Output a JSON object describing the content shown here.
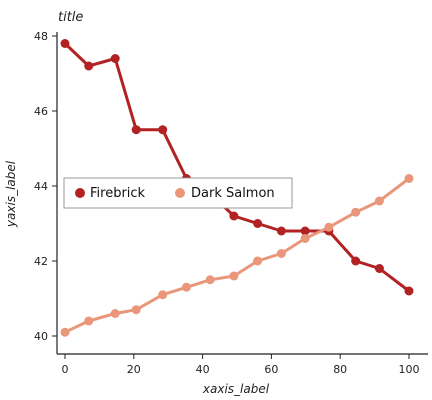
{
  "chart_data": {
    "type": "line",
    "title": "title",
    "xlabel": "xaxis_label",
    "ylabel": "yaxis_label",
    "xlim": [
      0,
      100
    ],
    "ylim": [
      40,
      48
    ],
    "xticks": [
      "0",
      "20",
      "40",
      "60",
      "80",
      "100"
    ],
    "yticks": [
      "40",
      "42",
      "44",
      "46",
      "48"
    ],
    "grid": false,
    "legend_position": "center-left",
    "series": [
      {
        "name": "Firebrick",
        "color": "#b22222",
        "x": [
          0,
          6.9,
          14.6,
          20.7,
          28.4,
          35.3,
          42.2,
          49.1,
          56.0,
          62.9,
          69.8,
          76.7,
          84.5,
          91.4,
          100
        ],
        "y": [
          47.8,
          47.2,
          47.4,
          45.5,
          45.5,
          44.2,
          43.8,
          43.2,
          43.0,
          42.8,
          42.8,
          42.8,
          42.0,
          41.8,
          41.2
        ]
      },
      {
        "name": "Dark Salmon",
        "color": "#e9967a",
        "x": [
          0,
          6.9,
          14.6,
          20.7,
          28.4,
          35.3,
          42.2,
          49.1,
          56.0,
          62.9,
          69.8,
          76.7,
          84.5,
          91.4,
          100
        ],
        "y": [
          40.1,
          40.4,
          40.6,
          40.7,
          41.1,
          41.3,
          41.5,
          41.6,
          42.0,
          42.2,
          42.6,
          42.9,
          43.3,
          43.6,
          44.2
        ]
      }
    ]
  }
}
